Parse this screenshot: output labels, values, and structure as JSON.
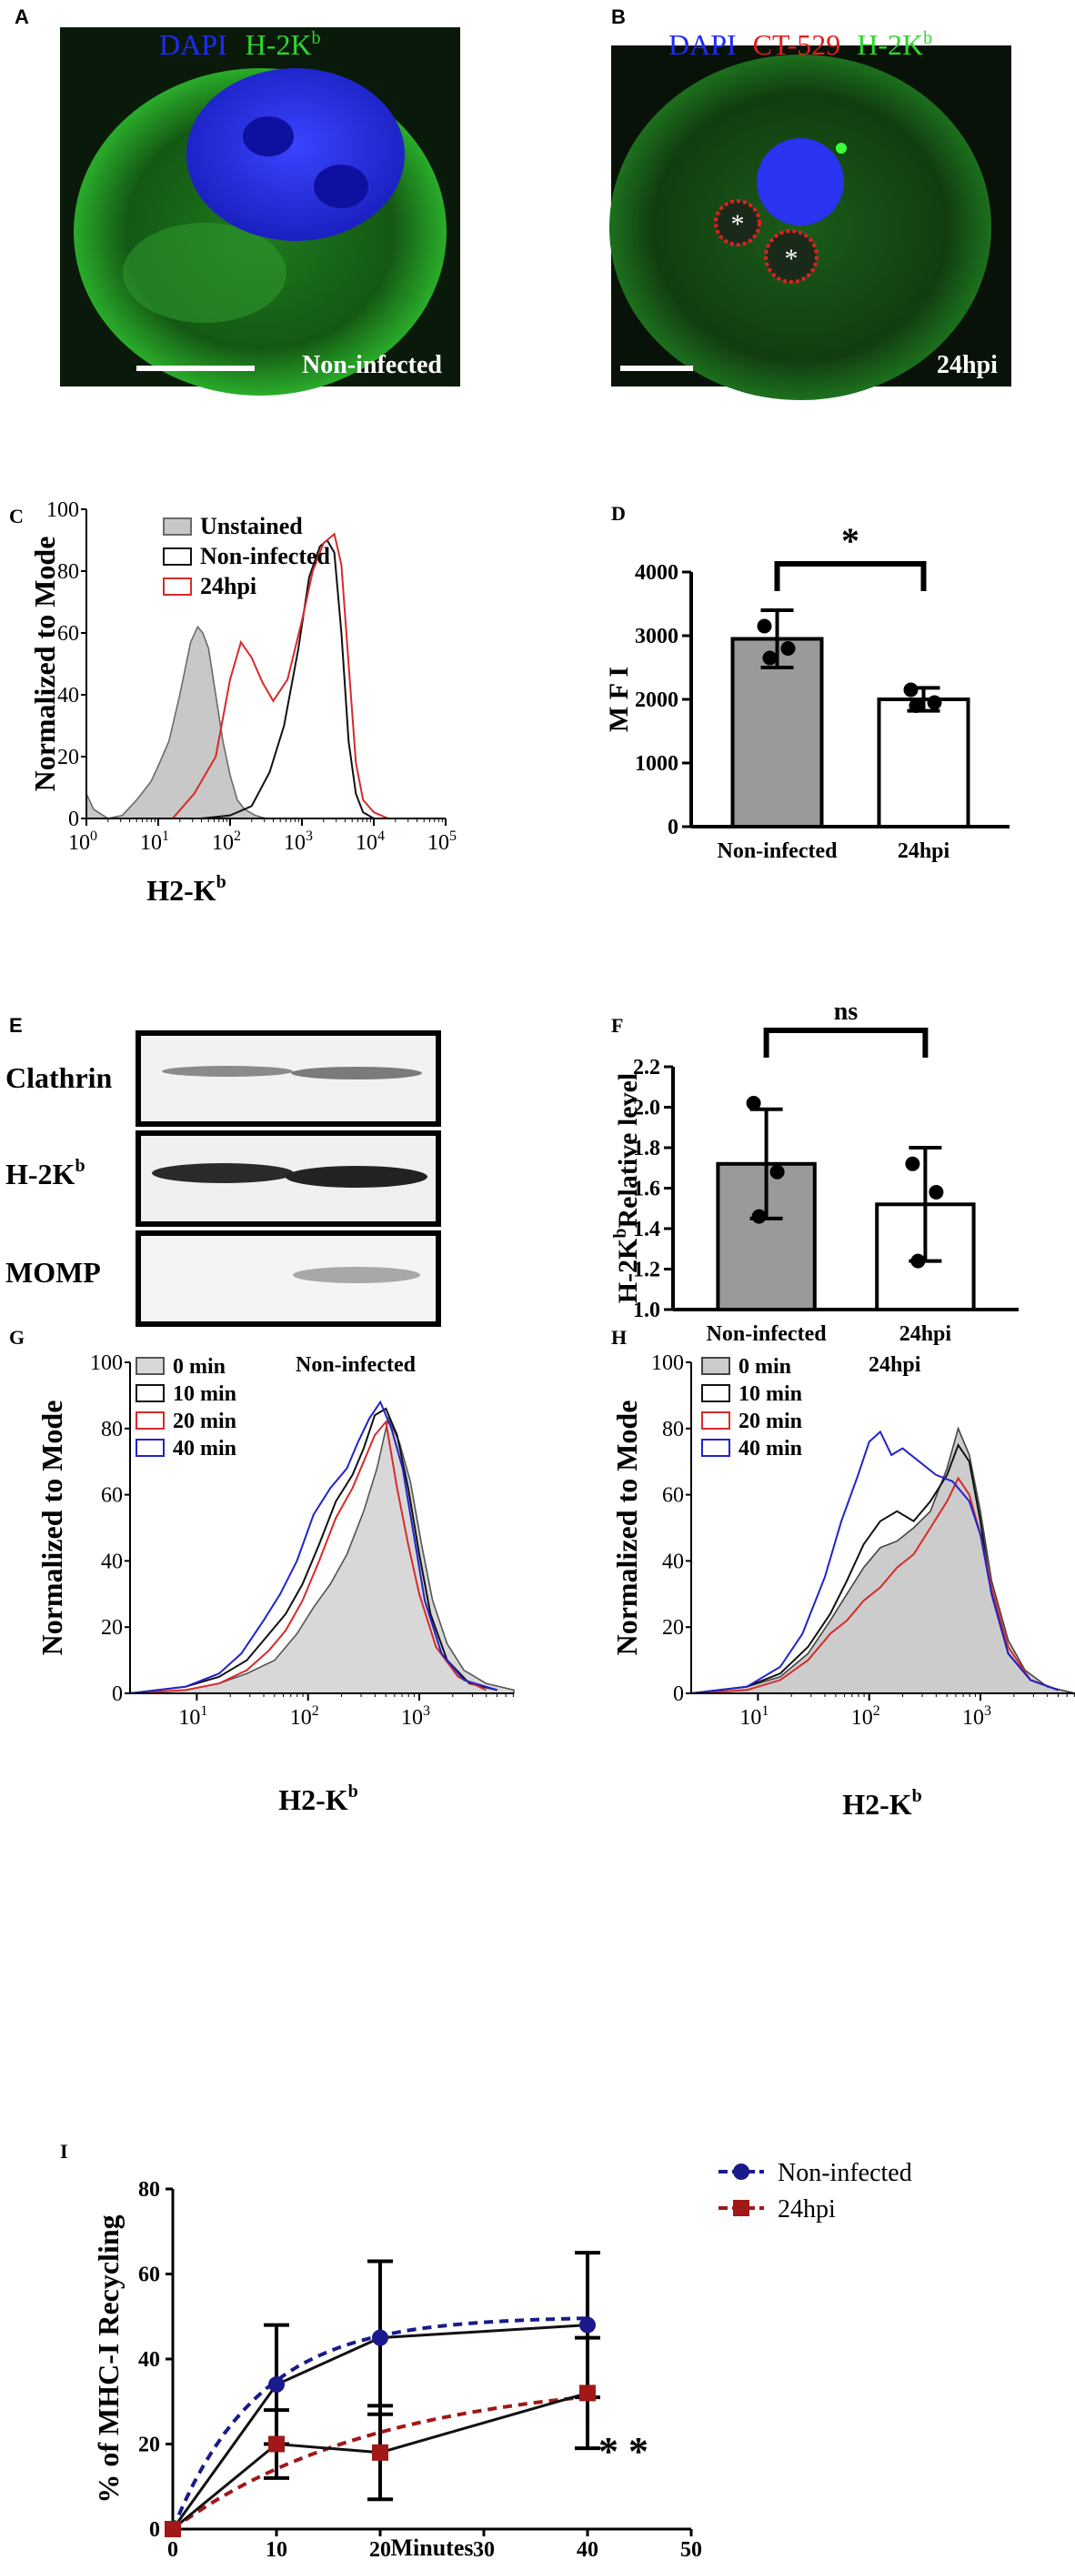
{
  "panels": {
    "A": {
      "letter": "A",
      "legend": [
        "DAPI",
        "H-2K"
      ],
      "legend_sup": "b",
      "caption": "Non-infected"
    },
    "B": {
      "letter": "B",
      "legend": [
        "DAPI",
        "CT-529",
        "H-2K"
      ],
      "legend_sup": "b",
      "caption": "24hpi",
      "markers": [
        "*",
        "*"
      ]
    },
    "E": {
      "letter": "E",
      "rows": [
        "Clathrin",
        "H-2K",
        "MOMP"
      ],
      "row_sup": "b"
    }
  },
  "colors": {
    "dapi": "#1f2bff",
    "h2kb": "#2ed62e",
    "ct529": "#e02020",
    "bar_grey": "#9a9a9a",
    "red_line": "#d82a2a",
    "blue_line": "#2222cc",
    "navy": "#1a1a8c",
    "dark_red": "#a01818"
  },
  "chart_data": [
    {
      "id": "C",
      "letter": "C",
      "type": "area",
      "ylabel": "Normalized to Mode",
      "xlabel": "H2-K",
      "xlabel_sup": "b",
      "xscale": "log",
      "xlim": [
        0,
        5
      ],
      "ylim": [
        0,
        100
      ],
      "yticks": [
        "0",
        "20",
        "40",
        "60",
        "80",
        "100"
      ],
      "xticks_base": "10",
      "xticks_exp": [
        "0",
        "1",
        "2",
        "3",
        "4",
        "5"
      ],
      "legend": [
        "Unstained",
        "Non-infected",
        "24hpi"
      ],
      "series": [
        {
          "name": "Unstained",
          "fill": "#c8c8c8",
          "stroke": "#6a6a6a",
          "x": [
            0,
            0.1,
            0.3,
            0.5,
            0.7,
            0.9,
            1.0,
            1.15,
            1.3,
            1.45,
            1.55,
            1.62,
            1.7,
            1.8,
            1.9,
            2.0,
            2.1,
            2.2,
            2.35,
            2.5
          ],
          "y": [
            8,
            3,
            0,
            1,
            6,
            12,
            17,
            25,
            40,
            57,
            62,
            60,
            55,
            40,
            25,
            14,
            6,
            3,
            1,
            0
          ]
        },
        {
          "name": "Non-infected",
          "fill": "none",
          "stroke": "#111111",
          "x": [
            0.7,
            1.2,
            1.6,
            2.0,
            2.3,
            2.55,
            2.75,
            2.95,
            3.1,
            3.25,
            3.35,
            3.45,
            3.55,
            3.65,
            3.75,
            3.85,
            4.0
          ],
          "y": [
            0,
            0,
            0,
            1,
            4,
            15,
            30,
            55,
            78,
            88,
            90,
            86,
            60,
            25,
            8,
            2,
            0
          ]
        },
        {
          "name": "24hpi",
          "fill": "none",
          "stroke": "#d82a2a",
          "x": [
            1.2,
            1.5,
            1.8,
            2.0,
            2.15,
            2.3,
            2.45,
            2.6,
            2.8,
            3.0,
            3.15,
            3.3,
            3.45,
            3.55,
            3.65,
            3.75,
            3.85,
            4.0,
            4.2
          ],
          "y": [
            0,
            8,
            20,
            45,
            57,
            52,
            44,
            38,
            45,
            64,
            80,
            89,
            92,
            82,
            50,
            18,
            6,
            2,
            0
          ]
        }
      ]
    },
    {
      "id": "D",
      "letter": "D",
      "type": "bar",
      "categories": [
        "Non-infected",
        "24hpi"
      ],
      "values": [
        2950,
        2000
      ],
      "errors": [
        450,
        180
      ],
      "points": [
        [
          3150,
          2800,
          2650
        ],
        [
          2150,
          1950,
          1900
        ]
      ],
      "ylabel": "M F I",
      "ylim": [
        0,
        4000
      ],
      "yticks": [
        "0",
        "1000",
        "2000",
        "3000",
        "4000"
      ],
      "significance": "*"
    },
    {
      "id": "F",
      "letter": "F",
      "type": "bar",
      "categories": [
        "Non-infected",
        "24hpi"
      ],
      "values": [
        1.72,
        1.52
      ],
      "errors": [
        0.27,
        0.28
      ],
      "points": [
        [
          2.02,
          1.68,
          1.46
        ],
        [
          1.72,
          1.58,
          1.24
        ]
      ],
      "ylabel": "H-2K",
      "ylabel_sup": "b",
      "ylabel_rest": "Relative level",
      "ylim": [
        1.0,
        2.2
      ],
      "yticks": [
        "1.0",
        "1.2",
        "1.4",
        "1.6",
        "1.8",
        "2.0",
        "2.2"
      ],
      "significance": "ns"
    },
    {
      "id": "G",
      "letter": "G",
      "type": "area",
      "title": "Non-infected",
      "ylabel": "Normalized to Mode",
      "xlabel": "H2-K",
      "xlabel_sup": "b",
      "xscale": "log",
      "xlim": [
        0.4,
        3.85
      ],
      "ylim": [
        0,
        100
      ],
      "yticks": [
        "0",
        "20",
        "40",
        "60",
        "80",
        "100"
      ],
      "xticks_base": "10",
      "xticks_exp": [
        "1",
        "2",
        "3"
      ],
      "legend": [
        "0 min",
        "10 min",
        "20 min",
        "40 min"
      ],
      "series": [
        {
          "name": "0 min",
          "fill": "#d8d8d8",
          "stroke": "#555555",
          "x": [
            0.4,
            0.9,
            1.2,
            1.45,
            1.7,
            1.9,
            2.05,
            2.2,
            2.35,
            2.5,
            2.62,
            2.72,
            2.82,
            2.92,
            3.02,
            3.12,
            3.25,
            3.4,
            3.6,
            3.85
          ],
          "y": [
            0,
            1,
            3,
            6,
            10,
            18,
            26,
            33,
            42,
            55,
            68,
            83,
            76,
            64,
            45,
            28,
            15,
            7,
            3,
            1
          ]
        },
        {
          "name": "10 min",
          "fill": "none",
          "stroke": "#111111",
          "x": [
            0.4,
            0.9,
            1.2,
            1.45,
            1.65,
            1.8,
            1.95,
            2.1,
            2.25,
            2.4,
            2.5,
            2.6,
            2.7,
            2.8,
            2.9,
            3.0,
            3.1,
            3.25,
            3.45,
            3.7
          ],
          "y": [
            0,
            2,
            5,
            10,
            18,
            24,
            33,
            45,
            58,
            66,
            74,
            84,
            86,
            78,
            62,
            42,
            24,
            10,
            3,
            1
          ]
        },
        {
          "name": "20 min",
          "fill": "none",
          "stroke": "#d82a2a",
          "x": [
            0.4,
            0.9,
            1.2,
            1.45,
            1.65,
            1.8,
            1.95,
            2.1,
            2.25,
            2.4,
            2.5,
            2.6,
            2.7,
            2.8,
            2.9,
            3.0,
            3.15,
            3.35,
            3.6
          ],
          "y": [
            0,
            1,
            3,
            7,
            13,
            19,
            28,
            40,
            53,
            62,
            70,
            78,
            82,
            62,
            45,
            30,
            14,
            5,
            1
          ]
        },
        {
          "name": "40 min",
          "fill": "none",
          "stroke": "#2222cc",
          "x": [
            0.4,
            0.9,
            1.2,
            1.4,
            1.6,
            1.75,
            1.9,
            2.05,
            2.2,
            2.35,
            2.45,
            2.55,
            2.65,
            2.75,
            2.85,
            2.95,
            3.05,
            3.2,
            3.4,
            3.7
          ],
          "y": [
            0,
            2,
            6,
            12,
            22,
            30,
            40,
            54,
            62,
            68,
            76,
            83,
            88,
            80,
            68,
            48,
            28,
            12,
            4,
            1
          ]
        }
      ]
    },
    {
      "id": "H",
      "letter": "H",
      "type": "area",
      "title": "24hpi",
      "ylabel": "Normalized to Mode",
      "xlabel": "H2-K",
      "xlabel_sup": "b",
      "xscale": "log",
      "xlim": [
        0.4,
        3.85
      ],
      "ylim": [
        0,
        100
      ],
      "yticks": [
        "0",
        "20",
        "40",
        "60",
        "80",
        "100"
      ],
      "xticks_base": "10",
      "xticks_exp": [
        "1",
        "2",
        "3"
      ],
      "legend": [
        "0 min",
        "10 min",
        "20 min",
        "40 min"
      ],
      "series": [
        {
          "name": "0 min",
          "fill": "#cccccc",
          "stroke": "#444444",
          "x": [
            0.4,
            0.9,
            1.2,
            1.45,
            1.65,
            1.8,
            1.95,
            2.1,
            2.25,
            2.4,
            2.55,
            2.7,
            2.8,
            2.9,
            3.0,
            3.1,
            3.25,
            3.4,
            3.6,
            3.85
          ],
          "y": [
            0,
            2,
            5,
            12,
            22,
            30,
            38,
            44,
            46,
            50,
            55,
            68,
            80,
            72,
            55,
            34,
            16,
            7,
            2,
            0
          ]
        },
        {
          "name": "10 min",
          "fill": "none",
          "stroke": "#111111",
          "x": [
            0.4,
            0.9,
            1.2,
            1.45,
            1.65,
            1.8,
            1.95,
            2.1,
            2.25,
            2.4,
            2.55,
            2.7,
            2.8,
            2.9,
            3.0,
            3.1,
            3.25,
            3.45,
            3.7
          ],
          "y": [
            0,
            2,
            6,
            14,
            24,
            34,
            45,
            52,
            55,
            52,
            58,
            66,
            75,
            70,
            52,
            30,
            12,
            4,
            1
          ]
        },
        {
          "name": "20 min",
          "fill": "none",
          "stroke": "#d82a2a",
          "x": [
            0.4,
            0.9,
            1.2,
            1.45,
            1.65,
            1.8,
            1.95,
            2.1,
            2.25,
            2.4,
            2.55,
            2.7,
            2.8,
            2.9,
            3.0,
            3.1,
            3.25,
            3.45,
            3.7
          ],
          "y": [
            0,
            1,
            4,
            10,
            18,
            22,
            28,
            32,
            38,
            42,
            50,
            58,
            65,
            60,
            48,
            32,
            14,
            4,
            1
          ]
        },
        {
          "name": "40 min",
          "fill": "none",
          "stroke": "#2222cc",
          "x": [
            0.4,
            0.9,
            1.2,
            1.4,
            1.6,
            1.75,
            1.9,
            2.0,
            2.1,
            2.2,
            2.3,
            2.45,
            2.6,
            2.75,
            2.9,
            3.0,
            3.1,
            3.25,
            3.45,
            3.7
          ],
          "y": [
            0,
            2,
            8,
            18,
            35,
            52,
            66,
            76,
            79,
            72,
            74,
            70,
            66,
            64,
            58,
            48,
            30,
            12,
            4,
            1
          ]
        }
      ]
    },
    {
      "id": "I",
      "letter": "I",
      "type": "line",
      "ylabel": "% of MHC-I Recycling",
      "xlabel": "Minutes",
      "xlim": [
        0,
        50
      ],
      "ylim": [
        0,
        80
      ],
      "xticks": [
        "0",
        "10",
        "20",
        "30",
        "40",
        "50"
      ],
      "yticks": [
        "0",
        "20",
        "40",
        "60",
        "80"
      ],
      "significance": "* *",
      "series": [
        {
          "name": "Non-infected",
          "marker": "circle",
          "color": "#1a1a8c",
          "x": [
            0,
            10,
            20,
            40
          ],
          "y": [
            0,
            34,
            45,
            48
          ],
          "err": [
            0,
            14,
            18,
            17
          ],
          "fit_plateau": 50,
          "fit_k": 0.12
        },
        {
          "name": "24hpi",
          "marker": "square",
          "color": "#a01818",
          "x": [
            0,
            10,
            20,
            40
          ],
          "y": [
            0,
            20,
            18,
            32
          ],
          "err": [
            0,
            8,
            11,
            13
          ],
          "fit_plateau": 36,
          "fit_k": 0.05
        }
      ]
    }
  ]
}
